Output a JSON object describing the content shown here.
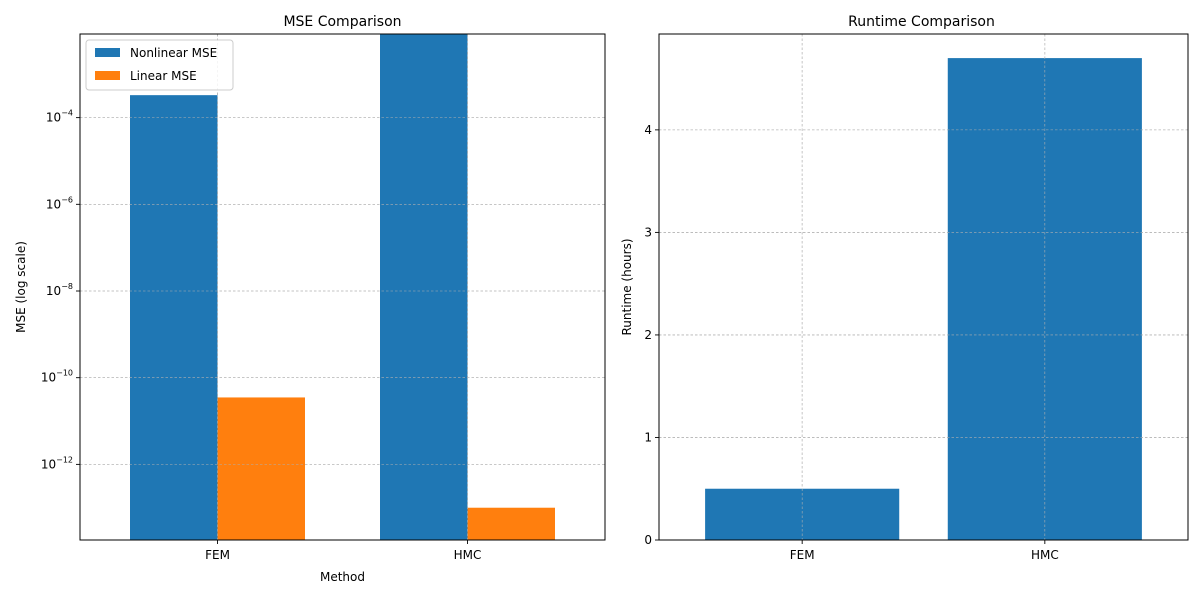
{
  "chart_data": [
    {
      "type": "bar",
      "title": "MSE Comparison",
      "xlabel": "Method",
      "ylabel": "MSE (log scale)",
      "yscale": "log",
      "categories": [
        "FEM",
        "HMC"
      ],
      "series": [
        {
          "name": "Nonlinear MSE",
          "color": "#1f77b4",
          "values": [
            0.00033,
            0.011
          ]
        },
        {
          "name": "Linear MSE",
          "color": "#ff7f0e",
          "values": [
            3.5e-11,
            1e-13
          ]
        }
      ],
      "ylim": [
        1.8e-14,
        0.0085
      ],
      "yticks": [
        {
          "value": 0.0001,
          "base": "10",
          "exp": "−4"
        },
        {
          "value": 1e-06,
          "base": "10",
          "exp": "−6"
        },
        {
          "value": 1e-08,
          "base": "10",
          "exp": "−8"
        },
        {
          "value": 1e-10,
          "base": "10",
          "exp": "−10"
        },
        {
          "value": 1e-12,
          "base": "10",
          "exp": "−12"
        }
      ],
      "legend": "top-left",
      "grid": true
    },
    {
      "type": "bar",
      "title": "Runtime Comparison",
      "xlabel": "",
      "ylabel": "Runtime (hours)",
      "categories": [
        "FEM",
        "HMC"
      ],
      "series": [
        {
          "name": "",
          "color": "#1f77b4",
          "values": [
            0.5,
            4.7
          ]
        }
      ],
      "ylim": [
        0,
        4.935
      ],
      "yticks": [
        {
          "value": 0,
          "label": "0"
        },
        {
          "value": 1,
          "label": "1"
        },
        {
          "value": 2,
          "label": "2"
        },
        {
          "value": 3,
          "label": "3"
        },
        {
          "value": 4,
          "label": "4"
        }
      ],
      "grid": true
    }
  ]
}
